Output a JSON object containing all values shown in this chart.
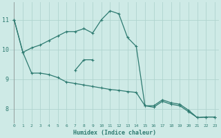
{
  "xlabel": "Humidex (Indice chaleur)",
  "background_color": "#ceeae6",
  "grid_color": "#b0d4cf",
  "line_color": "#2d7a70",
  "xlim": [
    -0.5,
    23.5
  ],
  "ylim": [
    7.5,
    11.6
  ],
  "yticks": [
    8,
    9,
    10,
    11
  ],
  "xticks": [
    0,
    1,
    2,
    3,
    4,
    5,
    6,
    7,
    8,
    9,
    10,
    11,
    12,
    13,
    14,
    15,
    16,
    17,
    18,
    19,
    20,
    21,
    22,
    23
  ],
  "series1_x": [
    0,
    1,
    2,
    3,
    4,
    5,
    6,
    7,
    8,
    9,
    10,
    11,
    12,
    13,
    14,
    15,
    16,
    17,
    18,
    19,
    20,
    21,
    22,
    23
  ],
  "series1_y": [
    11.0,
    9.9,
    9.2,
    9.2,
    9.15,
    9.05,
    8.9,
    8.85,
    8.8,
    8.75,
    8.7,
    8.65,
    8.62,
    8.58,
    8.55,
    8.1,
    8.05,
    8.25,
    8.15,
    8.1,
    7.9,
    7.7,
    7.72,
    7.72
  ],
  "series2_x": [
    0,
    1,
    2,
    3,
    4,
    5,
    6,
    7,
    8,
    9,
    10,
    11,
    12,
    13,
    14,
    15,
    16,
    17,
    18,
    19,
    20,
    21,
    22,
    23
  ],
  "series2_y": [
    11.0,
    9.9,
    10.05,
    10.15,
    10.3,
    10.45,
    10.6,
    10.6,
    10.7,
    10.55,
    11.0,
    11.3,
    11.2,
    10.4,
    10.1,
    8.1,
    8.1,
    8.3,
    8.2,
    8.15,
    7.95,
    7.7,
    7.72,
    7.72
  ],
  "series3_x": [
    7,
    8,
    9
  ],
  "series3_y": [
    9.3,
    9.65,
    9.65
  ]
}
